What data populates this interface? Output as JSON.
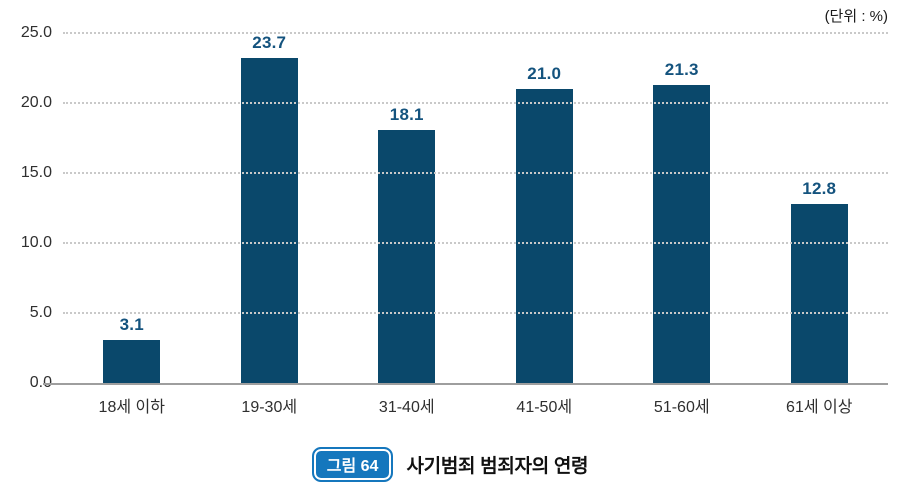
{
  "unit_label": "(단위 : %)",
  "caption": {
    "badge": "그림 64",
    "title": "사기범죄 범죄자의 연령"
  },
  "colors": {
    "bar": "#0a486b",
    "value_label": "#14537e",
    "badge_bg": "#1577bd",
    "grid": "#c9c9c9",
    "baseline": "#9e9e9e",
    "axis_text": "#2f2f2f"
  },
  "chart_data": {
    "type": "bar",
    "categories": [
      "18세 이하",
      "19-30세",
      "31-40세",
      "41-50세",
      "51-60세",
      "61세 이상"
    ],
    "values": [
      3.1,
      23.7,
      18.1,
      21.0,
      21.3,
      12.8
    ],
    "title": "사기범죄 범죄자의 연령",
    "xlabel": "",
    "ylabel": "",
    "unit": "(단위 : %)",
    "ylim": [
      0,
      25
    ],
    "yticks": [
      "0.0",
      "5.0",
      "10.0",
      "15.0",
      "20.0",
      "25.0"
    ],
    "grid": "horizontal-dotted",
    "legend": "none"
  }
}
